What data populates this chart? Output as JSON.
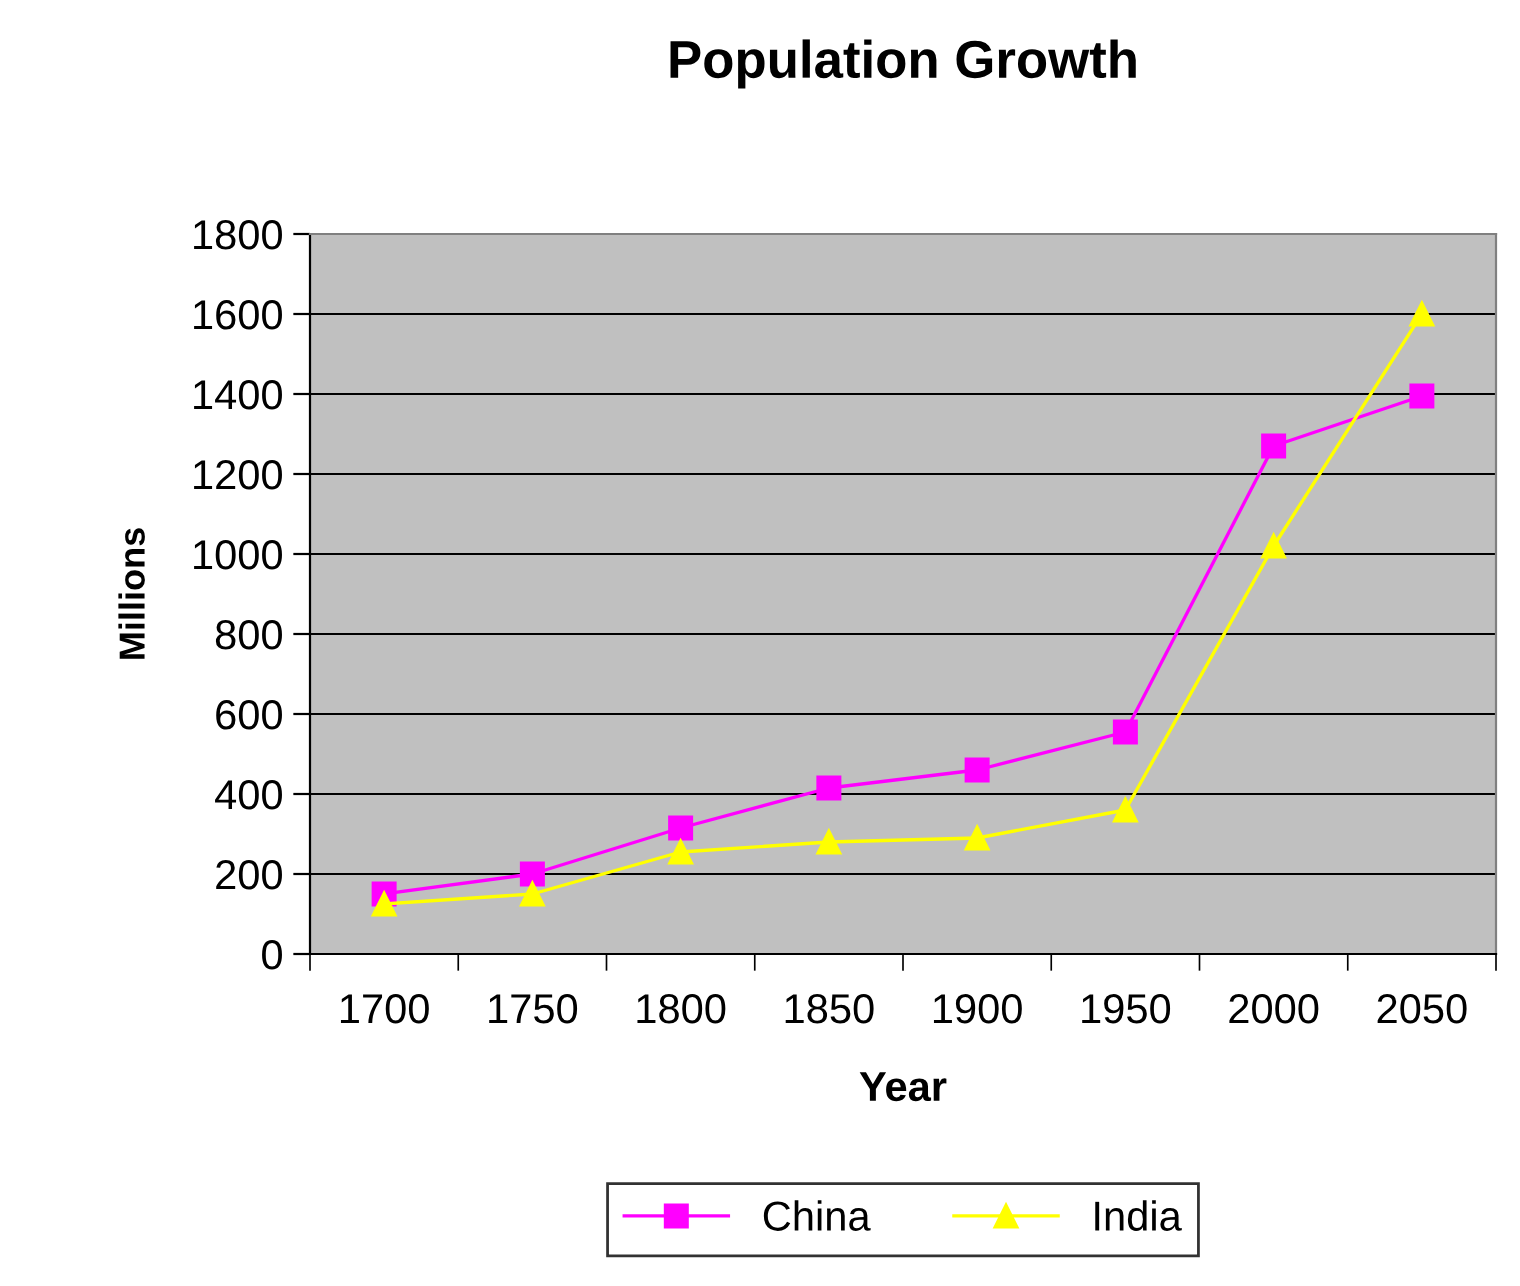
{
  "chart_data": {
    "type": "line",
    "title": "Population Growth",
    "xlabel": "Year",
    "ylabel": "Millions",
    "categories": [
      "1700",
      "1750",
      "1800",
      "1850",
      "1900",
      "1950",
      "2000",
      "2050"
    ],
    "series": [
      {
        "name": "China",
        "color": "#ff00ff",
        "marker": "square",
        "values": [
          150,
          200,
          315,
          415,
          460,
          555,
          1270,
          1395
        ]
      },
      {
        "name": "India",
        "color": "#ffff00",
        "marker": "triangle",
        "values": [
          125,
          150,
          255,
          280,
          290,
          360,
          1020,
          1600
        ]
      }
    ],
    "ylim": [
      0,
      1800
    ],
    "yticks": [
      0,
      200,
      400,
      600,
      800,
      1000,
      1200,
      1400,
      1600,
      1800
    ],
    "grid": "y",
    "legend": "bottom",
    "line_style": "solid"
  }
}
